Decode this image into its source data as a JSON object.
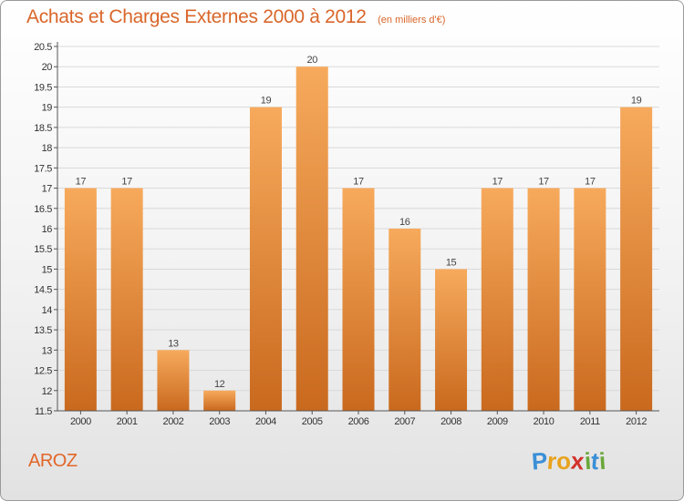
{
  "title": "Achats et Charges Externes 2000 à 2012",
  "unit": "(en milliers d'€)",
  "town": "AROZ",
  "logo": {
    "letters": [
      "P",
      "r",
      "o",
      "x",
      "i",
      "t",
      "i"
    ],
    "colors": [
      "#3b8fd6",
      "#e8a21c",
      "#e8a21c",
      "#d2322d",
      "#6aa83a",
      "#3b8fd6",
      "#6aa83a"
    ]
  },
  "colors": {
    "bar_top": "#f7aa5c",
    "bar_bottom": "#c9691e",
    "title": "#d9662a",
    "label": "#444444"
  },
  "chart_data": {
    "type": "bar",
    "categories": [
      "2000",
      "2001",
      "2002",
      "2003",
      "2004",
      "2005",
      "2006",
      "2007",
      "2008",
      "2009",
      "2010",
      "2011",
      "2012"
    ],
    "values": [
      17,
      17,
      13,
      12,
      19,
      20,
      17,
      16,
      15,
      17,
      17,
      17,
      19
    ],
    "ylim": [
      11.5,
      20.5
    ],
    "yticks": [
      "11.5",
      "12",
      "12.5",
      "13",
      "13.5",
      "14",
      "14.5",
      "15",
      "15.5",
      "16",
      "16.5",
      "17",
      "17.5",
      "18",
      "18.5",
      "19",
      "19.5",
      "20",
      "20.5"
    ],
    "grid": true,
    "title": "Achats et Charges Externes 2000 à 2012",
    "xlabel": "",
    "ylabel": ""
  }
}
